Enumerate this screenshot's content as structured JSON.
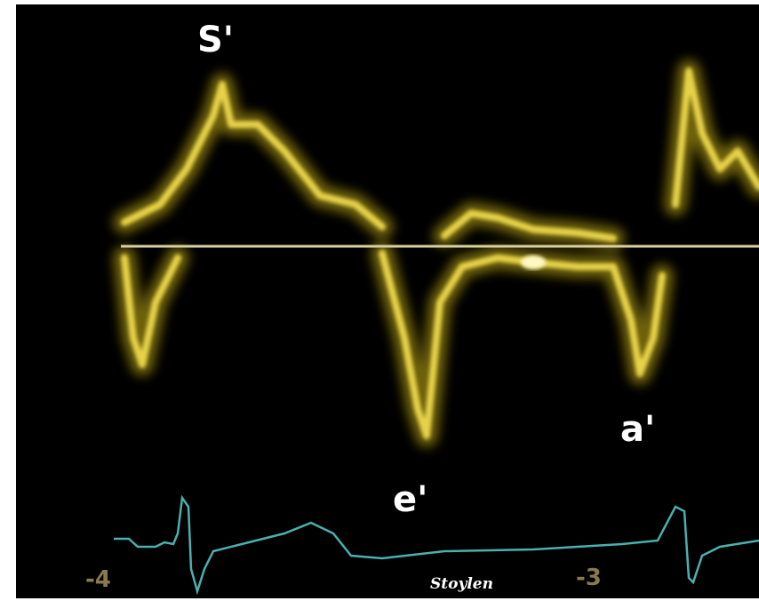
{
  "peak_labels": [
    "S'",
    "e'",
    "a'"
  ],
  "ecg_markers": [
    "-4",
    "-3"
  ],
  "credit": "Stoylen"
}
